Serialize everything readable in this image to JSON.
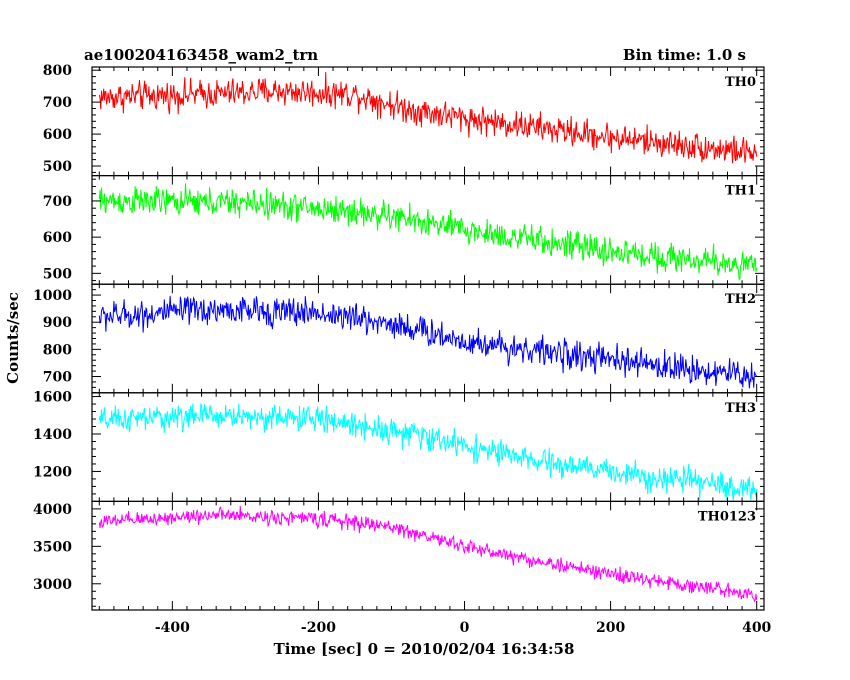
{
  "header": {
    "title": "ae100204163458_wam2_trn",
    "bin_time": "Bin time: 1.0 s"
  },
  "axes": {
    "xlabel": "Time [sec] 0 = 2010/02/04 16:34:58",
    "ylabel": "Counts/sec"
  },
  "chart_data": {
    "type": "line",
    "title": "ae100204163458_wam2_trn",
    "subtitle": "Bin time: 1.0 s",
    "xlabel": "Time [sec] 0 = 2010/02/04 16:34:58",
    "ylabel": "Counts/sec",
    "xlim": [
      -510,
      410
    ],
    "x_ticks": [
      "-400",
      "-200",
      "0",
      "200",
      "400"
    ],
    "x_tick_values": [
      -400,
      -200,
      0,
      200,
      400
    ],
    "x_range": [
      -500,
      400
    ],
    "x_step": 1,
    "panels": [
      {
        "name": "TH0",
        "color": "#ff0000",
        "ylim": [
          470,
          810
        ],
        "y_ticks": [
          500,
          600,
          700,
          800
        ],
        "trend": [
          [
            -500,
            715
          ],
          [
            -350,
            725
          ],
          [
            -260,
            735
          ],
          [
            -150,
            725
          ],
          [
            -80,
            680
          ],
          [
            0,
            650
          ],
          [
            200,
            590
          ],
          [
            400,
            540
          ]
        ],
        "noise": 32
      },
      {
        "name": "TH1",
        "color": "#00ff00",
        "ylim": [
          470,
          770
        ],
        "y_ticks": [
          500,
          600,
          700
        ],
        "trend": [
          [
            -500,
            700
          ],
          [
            -300,
            695
          ],
          [
            -150,
            670
          ],
          [
            -80,
            650
          ],
          [
            0,
            620
          ],
          [
            200,
            560
          ],
          [
            400,
            520
          ]
        ],
        "noise": 28
      },
      {
        "name": "TH2",
        "color": "#0000ff",
        "ylim": [
          640,
          1040
        ],
        "y_ticks": [
          700,
          800,
          900,
          1000
        ],
        "trend": [
          [
            -500,
            920
          ],
          [
            -350,
            945
          ],
          [
            -200,
            935
          ],
          [
            -100,
            895
          ],
          [
            0,
            830
          ],
          [
            200,
            760
          ],
          [
            400,
            700
          ]
        ],
        "noise": 38
      },
      {
        "name": "TH3",
        "color": "#00ffff",
        "ylim": [
          1040,
          1620
        ],
        "y_ticks": [
          1200,
          1400,
          1600
        ],
        "trend": [
          [
            -500,
            1470
          ],
          [
            -350,
            1500
          ],
          [
            -200,
            1480
          ],
          [
            -100,
            1420
          ],
          [
            0,
            1340
          ],
          [
            100,
            1250
          ],
          [
            200,
            1200
          ],
          [
            400,
            1100
          ]
        ],
        "noise": 48
      },
      {
        "name": "TH0123",
        "color": "#ff00ff",
        "ylim": [
          2650,
          4100
        ],
        "y_ticks": [
          3000,
          3500,
          4000
        ],
        "trend": [
          [
            -500,
            3820
          ],
          [
            -350,
            3920
          ],
          [
            -200,
            3870
          ],
          [
            -100,
            3760
          ],
          [
            0,
            3500
          ],
          [
            100,
            3300
          ],
          [
            200,
            3130
          ],
          [
            250,
            3050
          ],
          [
            400,
            2860
          ]
        ],
        "noise": 70
      }
    ]
  }
}
